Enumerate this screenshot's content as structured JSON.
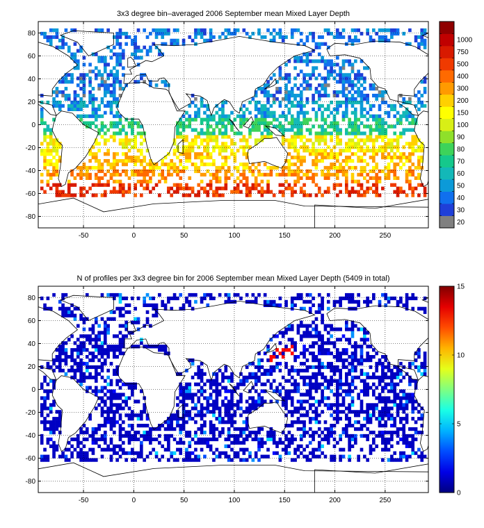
{
  "chart_data": [
    {
      "type": "heatmap",
      "title": "3x3 degree bin–averaged 2006 September mean Mixed Layer Depth",
      "xlabel": "",
      "ylabel": "",
      "xlim": [
        -95,
        293
      ],
      "ylim": [
        -90,
        90
      ],
      "x_ticks": [
        -50,
        0,
        50,
        100,
        150,
        200,
        250
      ],
      "y_ticks": [
        -80,
        -60,
        -40,
        -20,
        0,
        20,
        40,
        60,
        80
      ],
      "grid": true,
      "bin_size_deg": 3,
      "colorbar": {
        "labels": [
          "20",
          "30",
          "40",
          "50",
          "60",
          "70",
          "80",
          "90",
          "100",
          "150",
          "200",
          "300",
          "400",
          "500",
          "750",
          "1000"
        ],
        "colors": [
          "#808080",
          "#1f3fd8",
          "#1070ee",
          "#0c9ad8",
          "#13b8b8",
          "#15c88c",
          "#3dd35a",
          "#8fe02a",
          "#d8ef16",
          "#ffff00",
          "#ffd000",
          "#ff9a00",
          "#ff6a00",
          "#f03a00",
          "#d81a00",
          "#c00000",
          "#8f0000"
        ]
      },
      "latitude_band_pattern": [
        {
          "lat_range": [
            50,
            90
          ],
          "category": "30"
        },
        {
          "lat_range": [
            20,
            50
          ],
          "category": "30"
        },
        {
          "lat_range": [
            5,
            20
          ],
          "category": "40"
        },
        {
          "lat_range": [
            -10,
            5
          ],
          "category": "60"
        },
        {
          "lat_range": [
            -25,
            -10
          ],
          "category": "100"
        },
        {
          "lat_range": [
            -40,
            -25
          ],
          "category": "150"
        },
        {
          "lat_range": [
            -50,
            -40
          ],
          "category": "200"
        },
        {
          "lat_range": [
            -62,
            -50
          ],
          "category": "400"
        }
      ]
    },
    {
      "type": "heatmap",
      "title": "N of profiles per 3x3 degree bin for 2006 September mean Mixed Layer Depth  (5409 in total)",
      "xlabel": "",
      "ylabel": "",
      "xlim": [
        -95,
        293
      ],
      "ylim": [
        -90,
        90
      ],
      "x_ticks": [
        -50,
        0,
        50,
        100,
        150,
        200,
        250
      ],
      "y_ticks": [
        -80,
        -60,
        -40,
        -20,
        0,
        20,
        40,
        60,
        80
      ],
      "grid": true,
      "bin_size_deg": 3,
      "total_profiles": 5409,
      "colorbar": {
        "min": 0,
        "max": 15,
        "ticks": [
          0,
          5,
          10,
          15
        ],
        "colormap": "jet"
      },
      "typical_count": 1,
      "hotspot": {
        "lon_range": [
          135,
          160
        ],
        "lat_range": [
          25,
          40
        ],
        "count": 13
      }
    }
  ]
}
